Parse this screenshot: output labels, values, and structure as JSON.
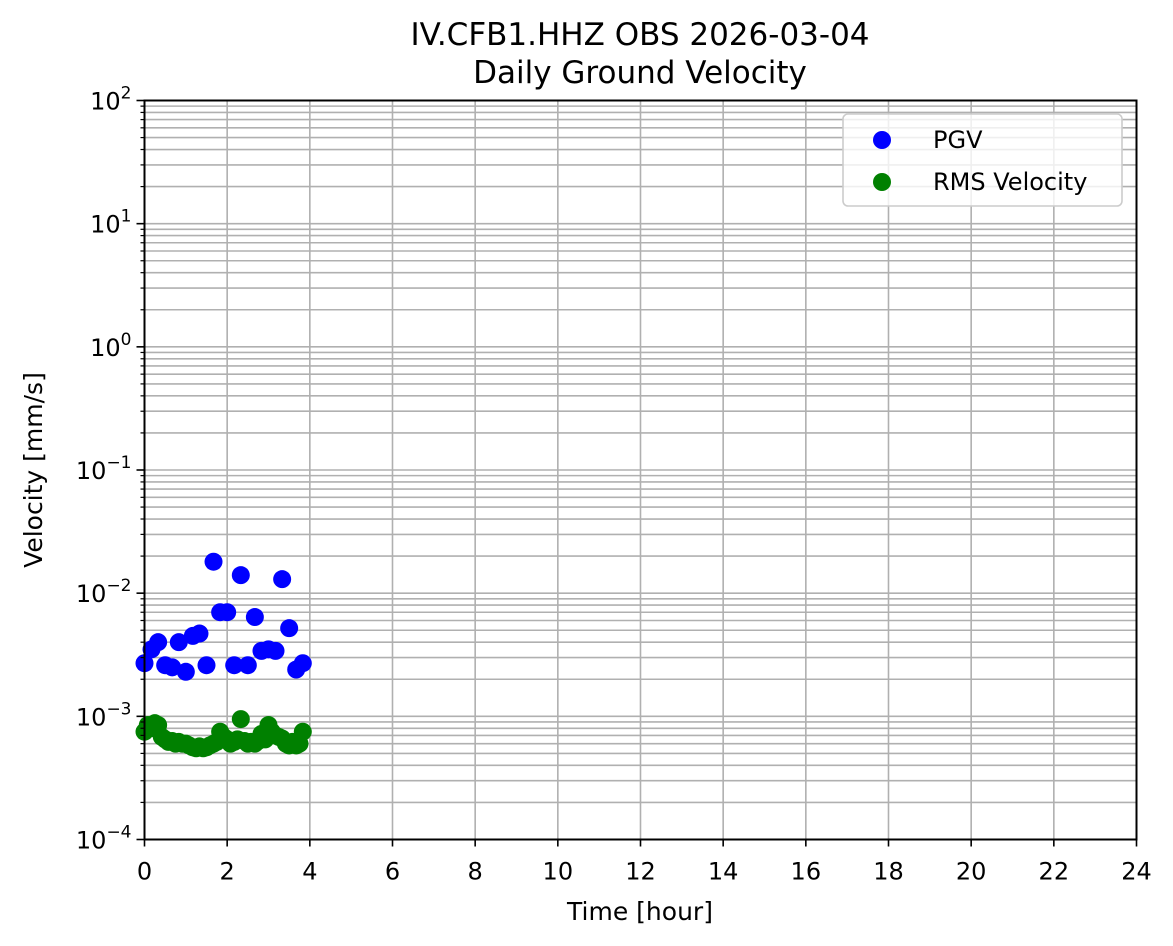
{
  "chart_data": {
    "type": "scatter",
    "title": [
      "IV.CFB1.HHZ OBS 2026-03-04",
      "Daily Ground Velocity"
    ],
    "xlabel": "Time [hour]",
    "ylabel": "Velocity [mm/s]",
    "xlim": [
      0,
      24
    ],
    "ylim": [
      0.0001,
      100
    ],
    "yscale": "log",
    "grid": "major and minor",
    "legend_position": "top-right",
    "x_ticks": [
      0,
      2,
      4,
      6,
      8,
      10,
      12,
      14,
      16,
      18,
      20,
      22,
      24
    ],
    "y_ticks": [
      {
        "base": "10",
        "exp": "−4",
        "value": 0.0001
      },
      {
        "base": "10",
        "exp": "−3",
        "value": 0.001
      },
      {
        "base": "10",
        "exp": "−2",
        "value": 0.01
      },
      {
        "base": "10",
        "exp": "−1",
        "value": 0.1
      },
      {
        "base": "10",
        "exp": "0",
        "value": 1
      },
      {
        "base": "10",
        "exp": "1",
        "value": 10
      },
      {
        "base": "10",
        "exp": "2",
        "value": 100
      }
    ],
    "series": [
      {
        "name": "PGV",
        "color": "#0000ff",
        "x": [
          0.0,
          0.17,
          0.33,
          0.5,
          0.67,
          0.83,
          1.0,
          1.17,
          1.33,
          1.5,
          1.67,
          1.83,
          2.0,
          2.17,
          2.33,
          2.5,
          2.67,
          2.83,
          3.0,
          3.17,
          3.33,
          3.5,
          3.67,
          3.83
        ],
        "y": [
          0.0027,
          0.0035,
          0.004,
          0.0026,
          0.0025,
          0.004,
          0.0023,
          0.0045,
          0.0047,
          0.0026,
          0.018,
          0.007,
          0.007,
          0.0026,
          0.014,
          0.0026,
          0.0064,
          0.0034,
          0.0035,
          0.0034,
          0.013,
          0.0052,
          0.0024,
          0.0027
        ]
      },
      {
        "name": "RMS Velocity",
        "color": "#008000",
        "x": [
          0.0,
          0.08,
          0.17,
          0.25,
          0.33,
          0.42,
          0.5,
          0.58,
          0.67,
          0.75,
          0.83,
          0.92,
          1.0,
          1.08,
          1.17,
          1.25,
          1.33,
          1.42,
          1.5,
          1.58,
          1.67,
          1.75,
          1.83,
          1.92,
          2.0,
          2.08,
          2.17,
          2.25,
          2.33,
          2.42,
          2.5,
          2.58,
          2.67,
          2.75,
          2.83,
          2.92,
          3.0,
          3.08,
          3.17,
          3.25,
          3.33,
          3.42,
          3.5,
          3.58,
          3.67,
          3.75,
          3.83
        ],
        "y": [
          0.00075,
          0.00085,
          0.0008,
          0.00088,
          0.00085,
          0.00068,
          0.00065,
          0.00062,
          0.00063,
          0.0006,
          0.00062,
          0.0006,
          0.0006,
          0.00058,
          0.00056,
          0.00055,
          0.00057,
          0.00055,
          0.00056,
          0.00058,
          0.0006,
          0.00062,
          0.00075,
          0.00068,
          0.00065,
          0.0006,
          0.00062,
          0.00065,
          0.00095,
          0.00063,
          0.0006,
          0.00062,
          0.0006,
          0.00063,
          0.00072,
          0.00065,
          0.00085,
          0.00075,
          0.0007,
          0.00068,
          0.00066,
          0.0006,
          0.00058,
          0.00062,
          0.00058,
          0.0006,
          0.00075
        ]
      }
    ]
  }
}
